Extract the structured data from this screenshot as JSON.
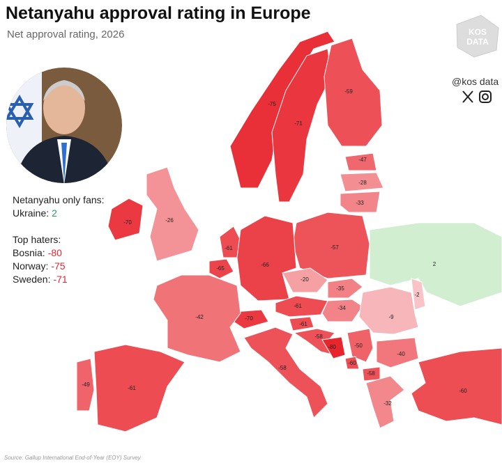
{
  "header": {
    "title": "Netanyahu approval rating in Europe",
    "subtitle": "Net approval rating, 2026"
  },
  "brand": {
    "logo_top": "KOS",
    "logo_bottom": "DATA",
    "handle": "@kos data"
  },
  "fans": {
    "heading": "Netanyahu only fans:",
    "items": [
      {
        "label": "Ukraine:",
        "value": 2
      }
    ]
  },
  "haters": {
    "heading": "Top haters:",
    "items": [
      {
        "label": "Bosnia:",
        "value": -80
      },
      {
        "label": "Norway:",
        "value": -75
      },
      {
        "label": "Sweden:",
        "value": -71
      }
    ]
  },
  "source": "Source: Gallup International End-of-Year (EOY) Survey",
  "colors": {
    "negative": "#e8252d",
    "positive": "#bfe8bf",
    "neutral": "#ffffff"
  },
  "map": {
    "regions": [
      {
        "value": -75
      },
      {
        "value": -71
      },
      {
        "value": -59
      },
      {
        "value": -47
      },
      {
        "value": -28
      },
      {
        "value": -33
      },
      {
        "value": -70
      },
      {
        "value": -26
      },
      {
        "value": -57
      },
      {
        "value": 2
      },
      {
        "value": -61
      },
      {
        "value": -65
      },
      {
        "value": -66
      },
      {
        "value": -20
      },
      {
        "value": -35
      },
      {
        "value": -61
      },
      {
        "value": -70
      },
      {
        "value": -34
      },
      {
        "value": -2
      },
      {
        "value": -9
      },
      {
        "value": -42
      },
      {
        "value": -61
      },
      {
        "value": -58
      },
      {
        "value": -80
      },
      {
        "value": -50
      },
      {
        "value": -40
      },
      {
        "value": -60
      },
      {
        "value": -58
      },
      {
        "value": -58
      },
      {
        "value": -49
      },
      {
        "value": -61
      },
      {
        "value": -32
      },
      {
        "value": -60
      }
    ]
  }
}
